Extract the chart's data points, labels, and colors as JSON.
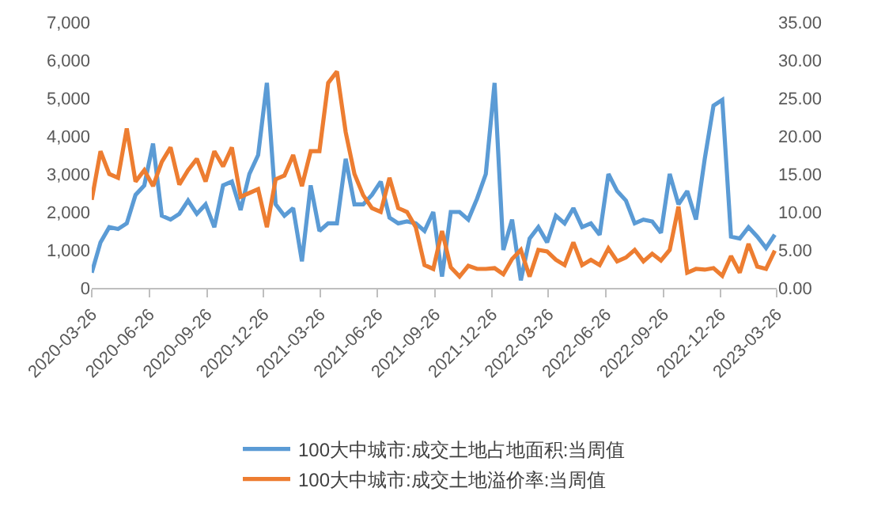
{
  "chart_data": {
    "type": "line",
    "x": [
      "2020-03-26",
      "2020-04-09",
      "2020-04-23",
      "2020-05-07",
      "2020-05-21",
      "2020-06-04",
      "2020-06-18",
      "2020-07-02",
      "2020-07-16",
      "2020-07-30",
      "2020-08-13",
      "2020-08-27",
      "2020-09-10",
      "2020-09-24",
      "2020-10-08",
      "2020-10-22",
      "2020-11-05",
      "2020-11-19",
      "2020-12-03",
      "2020-12-17",
      "2020-12-31",
      "2021-01-14",
      "2021-01-28",
      "2021-02-11",
      "2021-02-25",
      "2021-03-11",
      "2021-03-25",
      "2021-04-08",
      "2021-04-22",
      "2021-05-06",
      "2021-05-20",
      "2021-06-03",
      "2021-06-17",
      "2021-07-01",
      "2021-07-15",
      "2021-07-29",
      "2021-08-12",
      "2021-08-26",
      "2021-09-09",
      "2021-09-23",
      "2021-10-07",
      "2021-10-21",
      "2021-11-04",
      "2021-11-18",
      "2021-12-02",
      "2021-12-16",
      "2021-12-30",
      "2022-01-13",
      "2022-01-27",
      "2022-02-10",
      "2022-02-24",
      "2022-03-10",
      "2022-03-24",
      "2022-04-07",
      "2022-04-21",
      "2022-05-05",
      "2022-05-19",
      "2022-06-02",
      "2022-06-16",
      "2022-06-30",
      "2022-07-14",
      "2022-07-28",
      "2022-08-11",
      "2022-08-25",
      "2022-09-08",
      "2022-09-22",
      "2022-10-06",
      "2022-10-20",
      "2022-11-03",
      "2022-11-17",
      "2022-12-01",
      "2022-12-15",
      "2022-12-29",
      "2023-01-12",
      "2023-01-26",
      "2023-02-09",
      "2023-02-23",
      "2023-03-09",
      "2023-03-23"
    ],
    "series": [
      {
        "name": "100大中城市:成交土地占地面积:当周值",
        "color": "#5b9bd5",
        "values": [
          400,
          1200,
          1600,
          1550,
          1700,
          2450,
          2700,
          3800,
          1900,
          1800,
          1950,
          2300,
          1950,
          2200,
          1600,
          2700,
          2800,
          2050,
          3000,
          3500,
          5400,
          2200,
          1900,
          2100,
          700,
          2700,
          1500,
          1700,
          1700,
          3400,
          2200,
          2200,
          2450,
          2800,
          1850,
          1700,
          1750,
          1700,
          1500,
          2000,
          300,
          2000,
          2000,
          1800,
          2350,
          3000,
          5400,
          1000,
          1800,
          200,
          1300,
          1600,
          1200,
          1900,
          1700,
          2100,
          1600,
          1700,
          1400,
          3000,
          2550,
          2300,
          1700,
          1800,
          1750,
          1450,
          3000,
          2200,
          2550,
          1800,
          3400,
          4800,
          4950,
          1350,
          1300,
          1600,
          1350,
          1050,
          1400
        ]
      },
      {
        "name": "100大中城市:成交土地溢价率:当周值",
        "color": "#ed7d31",
        "axis": "y2",
        "values": [
          11.6,
          18,
          15,
          14.5,
          21,
          14,
          15.5,
          13.4,
          16.6,
          18.5,
          13.6,
          15.5,
          17,
          14,
          18,
          16,
          18.5,
          12,
          12.5,
          13,
          8,
          14.3,
          14.8,
          17.5,
          13.4,
          18,
          18,
          27,
          28.5,
          20.5,
          15,
          12.2,
          10.5,
          10,
          14.5,
          10.5,
          10,
          8,
          3,
          2.5,
          7.5,
          2.7,
          1.5,
          2.9,
          2.5,
          2.5,
          2.6,
          1.8,
          3.8,
          5,
          1.5,
          5,
          4.8,
          3.7,
          3,
          6,
          3,
          3.7,
          3,
          5.2,
          3.5,
          4,
          5,
          3.5,
          4.5,
          3.6,
          5,
          10.7,
          2,
          2.5,
          2.4,
          2.6,
          1.6,
          4.2,
          2,
          5.8,
          2.8,
          2.5,
          4.9
        ]
      }
    ],
    "xlim": [
      "2020-03-26",
      "2023-03-26"
    ],
    "xticks": [
      {
        "value": "2020-03-26",
        "label": "2020-03-26"
      },
      {
        "value": "2020-06-26",
        "label": "2020-06-26"
      },
      {
        "value": "2020-09-26",
        "label": "2020-09-26"
      },
      {
        "value": "2020-12-26",
        "label": "2020-12-26"
      },
      {
        "value": "2021-03-26",
        "label": "2021-03-26"
      },
      {
        "value": "2021-06-26",
        "label": "2021-06-26"
      },
      {
        "value": "2021-09-26",
        "label": "2021-09-26"
      },
      {
        "value": "2021-12-26",
        "label": "2021-12-26"
      },
      {
        "value": "2022-03-26",
        "label": "2022-03-26"
      },
      {
        "value": "2022-06-26",
        "label": "2022-06-26"
      },
      {
        "value": "2022-09-26",
        "label": "2022-09-26"
      },
      {
        "value": "2022-12-26",
        "label": "2022-12-26"
      },
      {
        "value": "2023-03-26",
        "label": "2023-03-26"
      }
    ],
    "ylim": [
      0,
      7000
    ],
    "yticks": [
      0,
      {
        "value": 1000,
        "label": "1,000"
      },
      {
        "value": 2000,
        "label": "2,000"
      },
      {
        "value": 3000,
        "label": "3,000"
      },
      {
        "value": 4000,
        "label": "4,000"
      },
      {
        "value": 5000,
        "label": "5,000"
      },
      {
        "value": 6000,
        "label": "6,000"
      },
      {
        "value": 7000,
        "label": "7,000"
      }
    ],
    "y2lim": [
      0,
      35
    ],
    "y2ticks": [
      {
        "value": 0,
        "label": "0.00"
      },
      {
        "value": 5,
        "label": "5.00"
      },
      {
        "value": 10,
        "label": "10.00"
      },
      {
        "value": 15,
        "label": "15.00"
      },
      {
        "value": 20,
        "label": "20.00"
      },
      {
        "value": 25,
        "label": "25.00"
      },
      {
        "value": 30,
        "label": "30.00"
      },
      {
        "value": 35,
        "label": "35.00"
      }
    ],
    "grid": false,
    "legend": "bottom",
    "marker": "none",
    "line_style": "solid"
  }
}
